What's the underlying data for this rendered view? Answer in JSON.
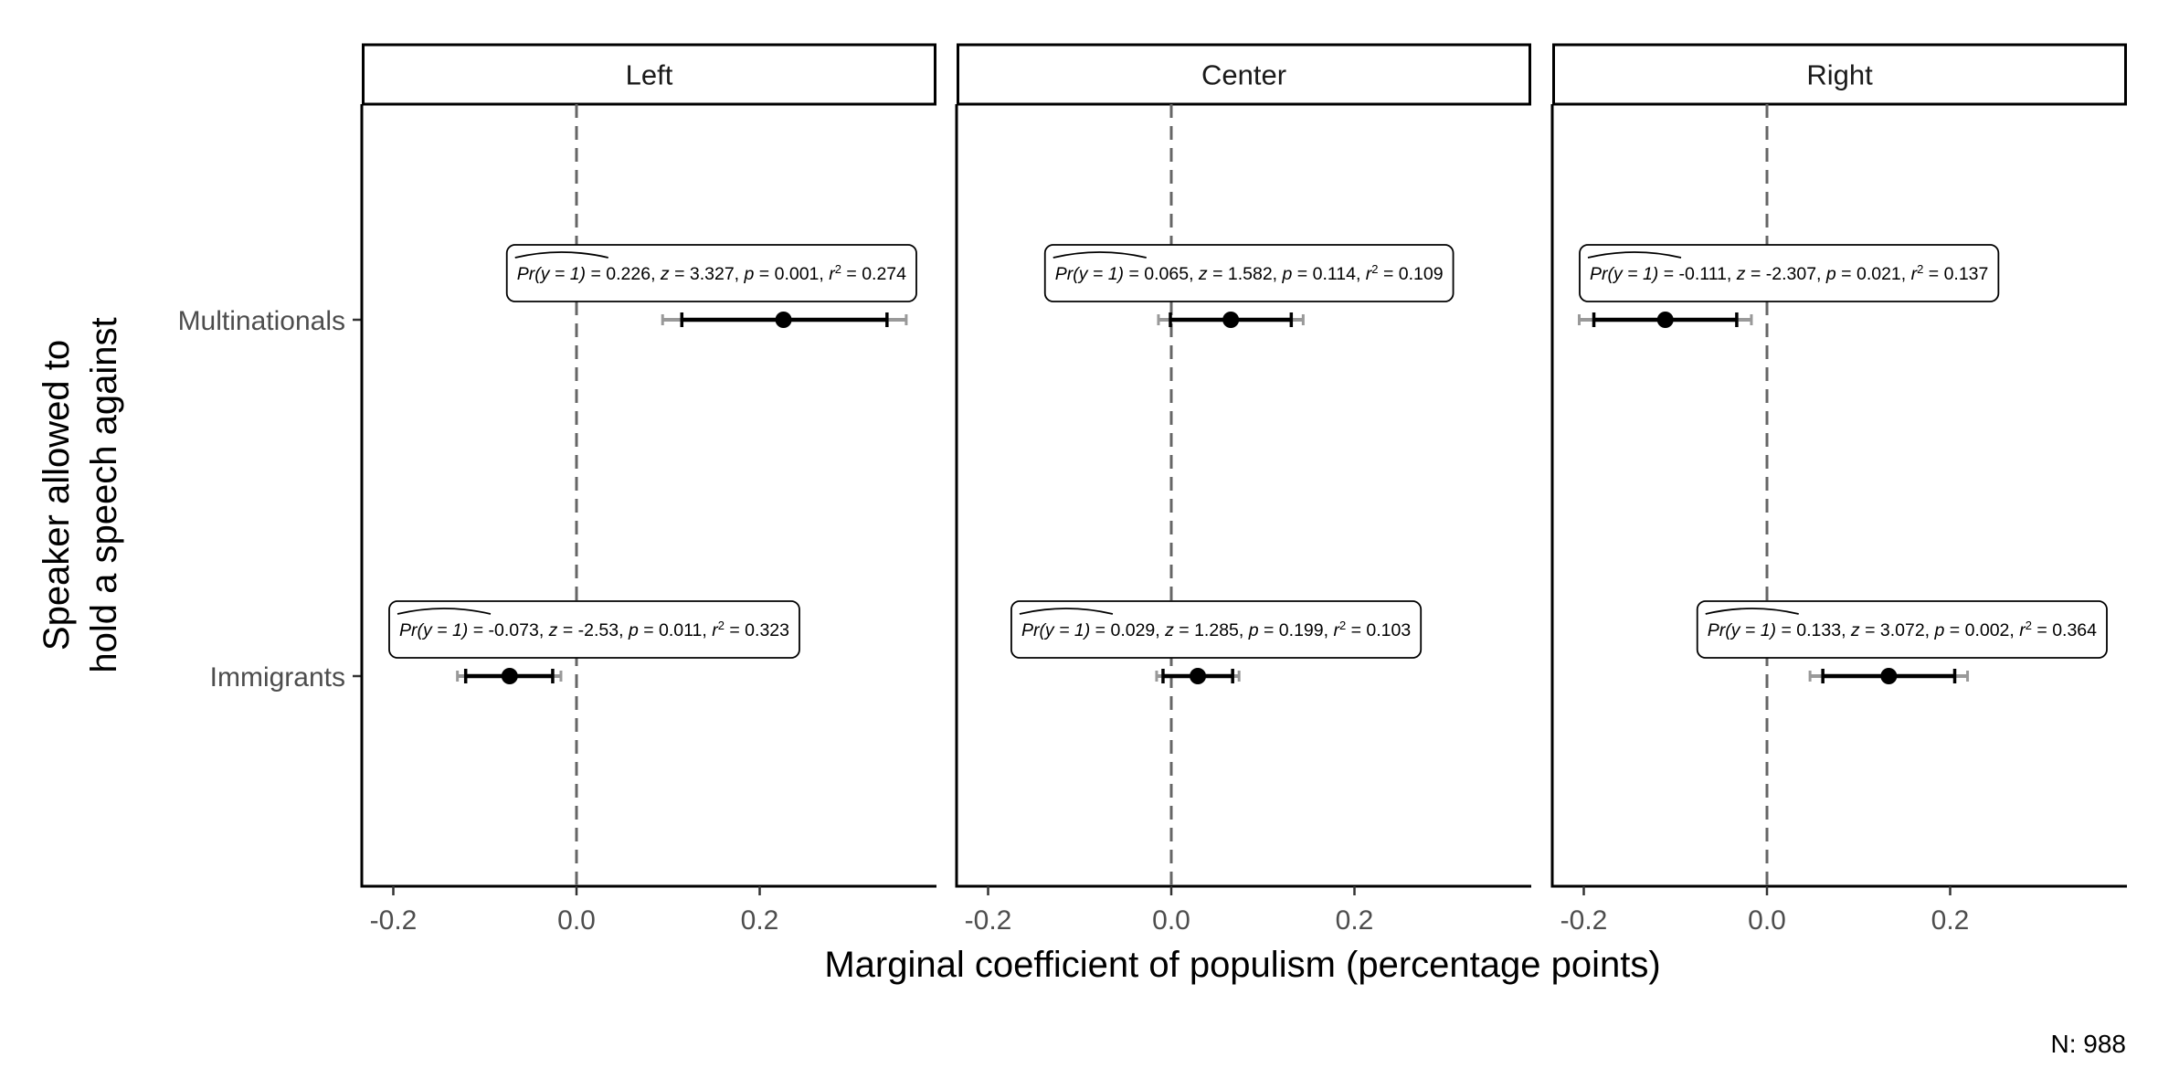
{
  "chart_data": {
    "type": "scatter",
    "subtype": "coefficient plot with confidence intervals, faceted",
    "facets": [
      "Left",
      "Center",
      "Right"
    ],
    "categories": [
      "Multinationals",
      "Immigrants"
    ],
    "xlabel": "Marginal coefficient of populism (percentage points)",
    "ylabel_lines": [
      "Speaker allowed to",
      "hold a speech against"
    ],
    "xlim": [
      -0.23,
      0.37
    ],
    "xticks": [
      -0.2,
      0.0,
      0.2
    ],
    "xtick_labels": [
      "-0.2",
      "0.0",
      "0.2"
    ],
    "reference_line": 0.0,
    "grid": false,
    "note": "N: 988",
    "annotation_prefix": "Pr(y = 1)",
    "points": [
      {
        "facet": "Left",
        "category": "Multinationals",
        "estimate": 0.226,
        "ci_inner": [
          0.115,
          0.339
        ],
        "ci_outer": [
          0.094,
          0.36
        ],
        "z": "3.327",
        "p": "0.001",
        "r2": "0.274",
        "est_label": "0.226"
      },
      {
        "facet": "Left",
        "category": "Immigrants",
        "estimate": -0.073,
        "ci_inner": [
          -0.121,
          -0.026
        ],
        "ci_outer": [
          -0.13,
          -0.017
        ],
        "z": "-2.53",
        "p": "0.011",
        "r2": "0.323",
        "est_label": "-0.073"
      },
      {
        "facet": "Center",
        "category": "Multinationals",
        "estimate": 0.065,
        "ci_inner": [
          -0.001,
          0.131
        ],
        "ci_outer": [
          -0.014,
          0.144
        ],
        "z": "1.582",
        "p": "0.114",
        "r2": "0.109",
        "est_label": "0.065"
      },
      {
        "facet": "Center",
        "category": "Immigrants",
        "estimate": 0.029,
        "ci_inner": [
          -0.009,
          0.067
        ],
        "ci_outer": [
          -0.016,
          0.074
        ],
        "z": "1.285",
        "p": "0.199",
        "r2": "0.103",
        "est_label": "0.029"
      },
      {
        "facet": "Right",
        "category": "Multinationals",
        "estimate": -0.111,
        "ci_inner": [
          -0.189,
          -0.033
        ],
        "ci_outer": [
          -0.205,
          -0.017
        ],
        "z": "-2.307",
        "p": "0.021",
        "r2": "0.137",
        "est_label": "-0.111"
      },
      {
        "facet": "Right",
        "category": "Immigrants",
        "estimate": 0.133,
        "ci_inner": [
          0.061,
          0.205
        ],
        "ci_outer": [
          0.047,
          0.219
        ],
        "z": "3.072",
        "p": "0.002",
        "r2": "0.364",
        "est_label": "0.133"
      }
    ]
  }
}
